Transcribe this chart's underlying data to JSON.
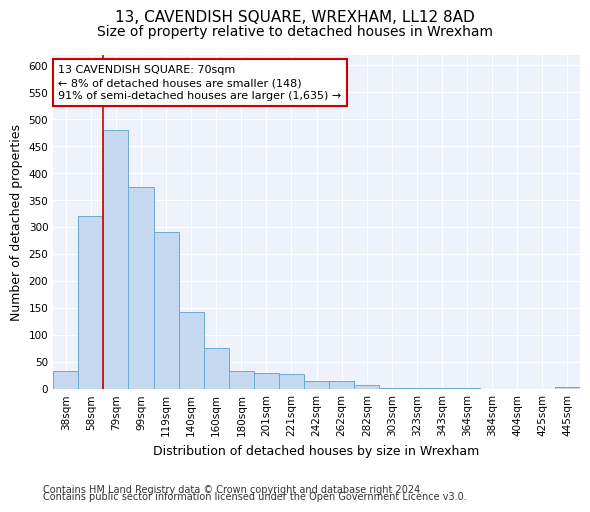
{
  "title": "13, CAVENDISH SQUARE, WREXHAM, LL12 8AD",
  "subtitle": "Size of property relative to detached houses in Wrexham",
  "xlabel": "Distribution of detached houses by size in Wrexham",
  "ylabel": "Number of detached properties",
  "categories": [
    "38sqm",
    "58sqm",
    "79sqm",
    "99sqm",
    "119sqm",
    "140sqm",
    "160sqm",
    "180sqm",
    "201sqm",
    "221sqm",
    "242sqm",
    "262sqm",
    "282sqm",
    "303sqm",
    "323sqm",
    "343sqm",
    "364sqm",
    "384sqm",
    "404sqm",
    "425sqm",
    "445sqm"
  ],
  "values": [
    33,
    320,
    480,
    375,
    291,
    143,
    75,
    33,
    30,
    28,
    15,
    15,
    6,
    2,
    2,
    1,
    1,
    0,
    0,
    0,
    3
  ],
  "bar_color": "#c5d8f0",
  "bar_edge_color": "#6aaad4",
  "property_line_color": "#cc0000",
  "property_line_xindex": 2,
  "annotation_line1": "13 CAVENDISH SQUARE: 70sqm",
  "annotation_line2": "← 8% of detached houses are smaller (148)",
  "annotation_line3": "91% of semi-detached houses are larger (1,635) →",
  "annotation_box_color": "#cc0000",
  "ylim": [
    0,
    620
  ],
  "yticks": [
    0,
    50,
    100,
    150,
    200,
    250,
    300,
    350,
    400,
    450,
    500,
    550,
    600
  ],
  "footer_line1": "Contains HM Land Registry data © Crown copyright and database right 2024.",
  "footer_line2": "Contains public sector information licensed under the Open Government Licence v3.0.",
  "bg_color": "#edf2fb",
  "grid_color": "#ffffff",
  "title_fontsize": 11,
  "subtitle_fontsize": 10,
  "axis_label_fontsize": 9,
  "tick_fontsize": 7.5,
  "annotation_fontsize": 8,
  "footer_fontsize": 7
}
